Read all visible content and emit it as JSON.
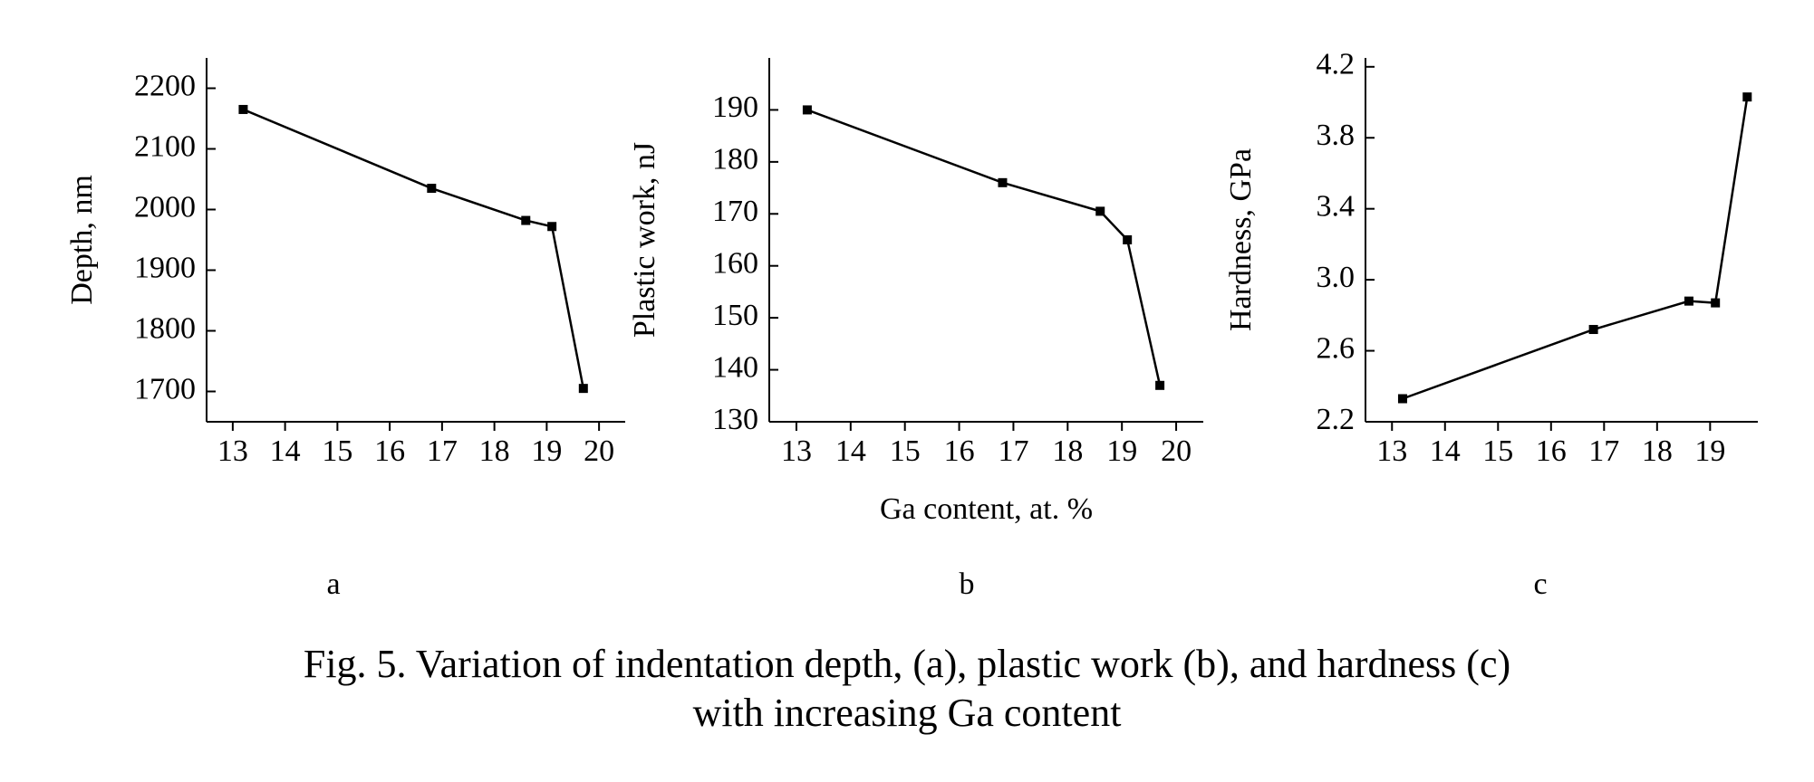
{
  "chart_data": [
    {
      "type": "line",
      "panel_label": "a",
      "ylabel": "Depth, nm",
      "x": [
        13.2,
        16.8,
        18.6,
        19.1,
        19.7
      ],
      "series": [
        {
          "color": "#000000",
          "values": [
            2165,
            2035,
            1982,
            1972,
            1705
          ]
        }
      ],
      "xlim": [
        12.5,
        20.5
      ],
      "xticks": [
        13,
        14,
        15,
        16,
        17,
        18,
        19,
        20
      ],
      "ylim": [
        1650,
        2250
      ],
      "yticks": [
        1700,
        1800,
        1900,
        2000,
        2100,
        2200
      ]
    },
    {
      "type": "line",
      "panel_label": "b",
      "ylabel": "Plastic work, nJ",
      "xlabel": "Ga content, at. %",
      "x": [
        13.2,
        16.8,
        18.6,
        19.1,
        19.7
      ],
      "series": [
        {
          "color": "#000000",
          "values": [
            190,
            176,
            170.5,
            165,
            137
          ]
        }
      ],
      "xlim": [
        12.5,
        20.5
      ],
      "xticks": [
        13,
        14,
        15,
        16,
        17,
        18,
        19,
        20
      ],
      "ylim": [
        130,
        200
      ],
      "yticks": [
        130,
        140,
        150,
        160,
        170,
        180,
        190
      ]
    },
    {
      "type": "line",
      "panel_label": "c",
      "ylabel": "Hardness, GPa",
      "x": [
        13.2,
        16.8,
        18.6,
        19.1,
        19.7
      ],
      "series": [
        {
          "color": "#000000",
          "values": [
            2.33,
            2.72,
            2.88,
            2.87,
            4.03
          ]
        }
      ],
      "xlim": [
        12.5,
        19.9
      ],
      "xticks": [
        13,
        14,
        15,
        16,
        17,
        18,
        19
      ],
      "ylim": [
        2.2,
        4.25
      ],
      "yticks": [
        2.2,
        2.6,
        {
          "value": 3,
          "label": "3.0"
        },
        3.4,
        3.8,
        4.2
      ]
    }
  ],
  "caption": [
    "Fig. 5. Variation of indentation depth, (a), plastic work (b), and hardness (c)",
    "with increasing Ga content"
  ]
}
